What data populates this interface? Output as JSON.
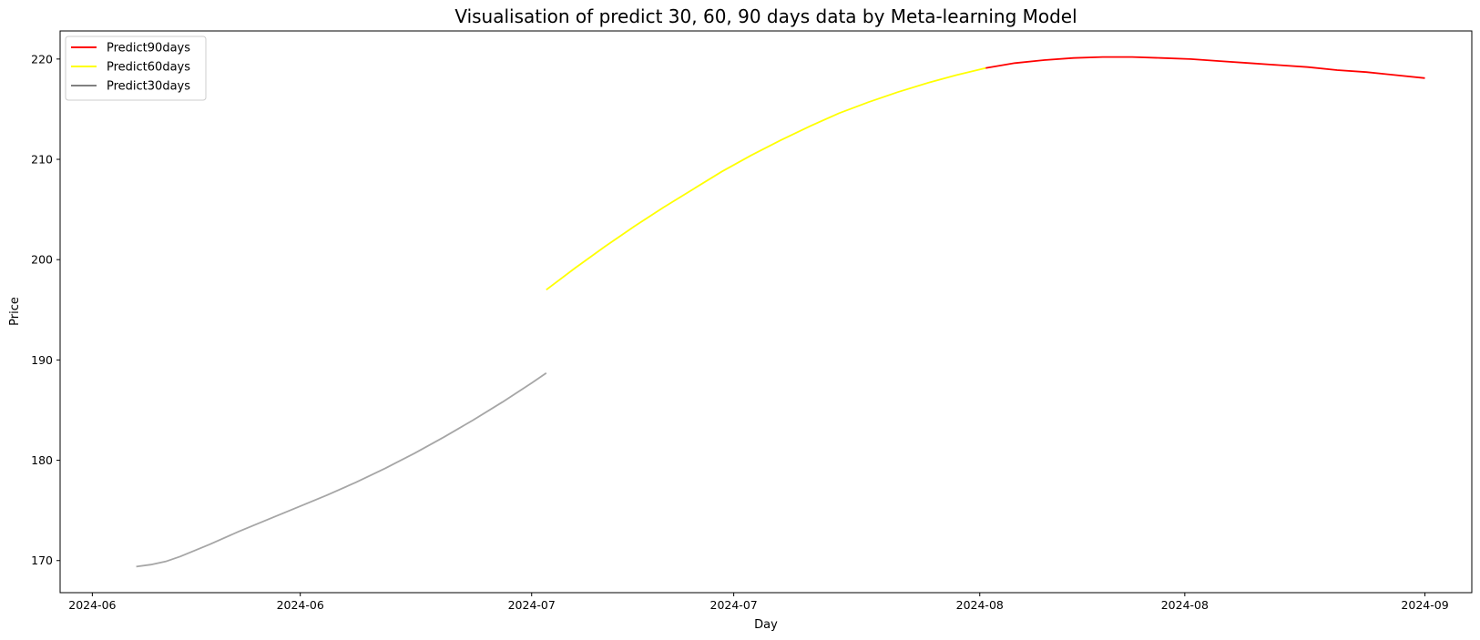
{
  "chart_data": {
    "type": "line",
    "title": "Visualisation of predict 30, 60, 90 days data by Meta-learning Model",
    "xlabel": "Day",
    "ylabel": "Price",
    "x_range": [
      -2.2,
      94.2
    ],
    "ylim": [
      166.8,
      222.8
    ],
    "yticks": [
      170,
      180,
      190,
      200,
      210,
      220
    ],
    "xticks": [
      {
        "label": "2024-06",
        "day": 0
      },
      {
        "label": "2024-06",
        "day": 14.2
      },
      {
        "label": "2024-07",
        "day": 30
      },
      {
        "label": "2024-07",
        "day": 43.8
      },
      {
        "label": "2024-08",
        "day": 60.6
      },
      {
        "label": "2024-08",
        "day": 74.6
      },
      {
        "label": "2024-09",
        "day": 91
      }
    ],
    "grid": false,
    "legend_position": "top-left",
    "series": [
      {
        "name": "Predict90days",
        "color": "#ff0000",
        "x": [
          61,
          63,
          65,
          67,
          69,
          71,
          73,
          75,
          77,
          79,
          81,
          83,
          85,
          87,
          89,
          91
        ],
        "y": [
          219.1,
          219.6,
          219.9,
          220.1,
          220.2,
          220.2,
          220.1,
          220.0,
          219.8,
          219.6,
          219.4,
          219.2,
          218.9,
          218.7,
          218.4,
          218.1
        ]
      },
      {
        "name": "Predict60days",
        "color": "#ffff00",
        "x": [
          31,
          33,
          35,
          37,
          39,
          41,
          43,
          45,
          47,
          49,
          51,
          53,
          55,
          57,
          59,
          61
        ],
        "y": [
          197.0,
          199.2,
          201.3,
          203.3,
          205.2,
          207.0,
          208.8,
          210.4,
          211.9,
          213.3,
          214.6,
          215.7,
          216.7,
          217.6,
          218.4,
          219.1
        ]
      },
      {
        "name": "Predict30days",
        "color": "#808080",
        "x": [
          3,
          4,
          5,
          6,
          8,
          10,
          12,
          14,
          16,
          18,
          20,
          22,
          24,
          26,
          28,
          30,
          31
        ],
        "y": [
          169.4,
          169.6,
          169.9,
          170.4,
          171.6,
          172.9,
          174.1,
          175.3,
          176.5,
          177.8,
          179.2,
          180.7,
          182.3,
          184.0,
          185.8,
          187.7,
          188.7
        ]
      }
    ]
  }
}
